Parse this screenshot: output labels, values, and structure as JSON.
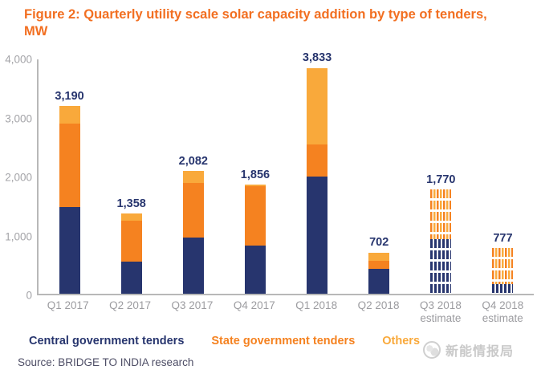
{
  "header": {
    "title": "Figure 2: Quarterly utility scale solar capacity addition by type of tenders, MW"
  },
  "legend": {
    "items": [
      {
        "label": "Central government tenders",
        "color": "#27356E"
      },
      {
        "label": "State government tenders",
        "color": "#F58220"
      },
      {
        "label": "Others",
        "color": "#F9A93B"
      }
    ]
  },
  "source": {
    "text": "Source: BRIDGE TO INDIA research"
  },
  "watermark": {
    "text": "新能情报局"
  },
  "colors": {
    "title_orange": "#F26F21",
    "central_navy": "#27356E",
    "state_orange": "#F58220",
    "others_light_orange": "#F9A93B",
    "axis_gray": "#B8B8B8",
    "tick_label_gray": "#A4A4A8"
  },
  "chart_data": {
    "type": "bar",
    "stacked": true,
    "title": "Figure 2: Quarterly utility scale solar capacity addition by type of tenders, MW",
    "xlabel": "",
    "ylabel": "MW",
    "ylim": [
      0,
      4000
    ],
    "grid": false,
    "legend_position": "bottom",
    "yticks": [
      {
        "value": 4000,
        "label": "4,000"
      },
      {
        "value": 3000,
        "label": "3,000"
      },
      {
        "value": 2000,
        "label": "2,000"
      },
      {
        "value": 1000,
        "label": "1,000"
      },
      {
        "value": 0,
        "label": "0"
      }
    ],
    "categories": [
      {
        "label": "Q1 2017",
        "sublabel": ""
      },
      {
        "label": "Q2 2017",
        "sublabel": ""
      },
      {
        "label": "Q3 2017",
        "sublabel": ""
      },
      {
        "label": "Q4 2017",
        "sublabel": ""
      },
      {
        "label": "Q1 2018",
        "sublabel": ""
      },
      {
        "label": "Q2 2018",
        "sublabel": ""
      },
      {
        "label": "Q3 2018",
        "sublabel": "estimate"
      },
      {
        "label": "Q4 2018",
        "sublabel": "estimate"
      }
    ],
    "totals": [
      3190,
      1358,
      2082,
      1856,
      3833,
      702,
      1770,
      777
    ],
    "total_labels": [
      "3,190",
      "1,358",
      "2,082",
      "1,856",
      "3,833",
      "702",
      "1,770",
      "777"
    ],
    "estimate_bars": [
      6,
      7
    ],
    "series": [
      {
        "name": "Central government tenders",
        "key": "central",
        "color": "#27356E",
        "values": [
          1480,
          550,
          960,
          830,
          1990,
          420,
          920,
          170
        ]
      },
      {
        "name": "State government tenders",
        "key": "state",
        "color": "#F58220",
        "values": [
          1410,
          690,
          920,
          1000,
          550,
          140,
          850,
          607
        ]
      },
      {
        "name": "Others",
        "key": "other",
        "color": "#F9A93B",
        "values": [
          300,
          118,
          202,
          26,
          1293,
          142,
          0,
          0
        ]
      }
    ]
  }
}
